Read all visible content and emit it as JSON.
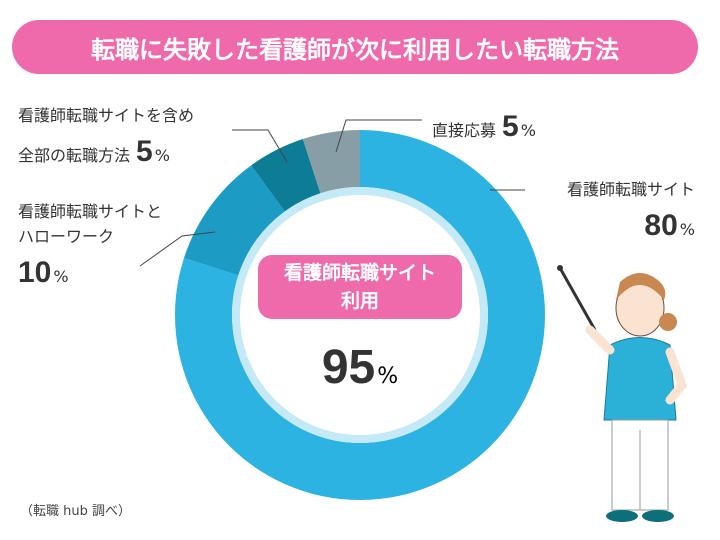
{
  "chart_data": {
    "type": "donut",
    "title": "転職に失敗した看護師が次に利用したい転職方法",
    "categories": [
      "看護師転職サイト",
      "看護師転職サイトとハローワーク",
      "看護師転職サイトを含め全部の転職方法",
      "直接応募"
    ],
    "values": [
      80,
      10,
      5,
      5
    ],
    "colors": [
      "#2db3e2",
      "#1c9bc4",
      "#0d7c95",
      "#889ea6"
    ],
    "unit": "%",
    "center_label": [
      "看護師転職サイト",
      "利用"
    ],
    "center_value": 95,
    "source": "（転職 hub 調べ）"
  }
}
